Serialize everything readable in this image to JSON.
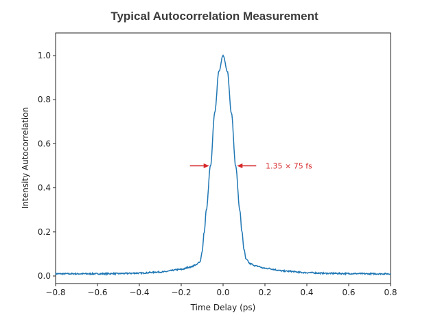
{
  "chart_data": {
    "type": "line",
    "title": "Typical Autocorrelation Measurement",
    "xlabel": "Time Delay (ps)",
    "ylabel": "Intensity Autocorrelation",
    "xlim": [
      -0.8,
      0.8
    ],
    "ylim": [
      -0.03,
      1.1
    ],
    "xticks": [
      "−0.8",
      "−0.6",
      "−0.4",
      "−0.2",
      "0.0",
      "0.2",
      "0.4",
      "0.6",
      "0.8"
    ],
    "xtick_values": [
      -0.8,
      -0.6,
      -0.4,
      -0.2,
      0.0,
      0.2,
      0.4,
      0.6,
      0.8
    ],
    "yticks": [
      "0.0",
      "0.2",
      "0.4",
      "0.6",
      "0.8",
      "1.0"
    ],
    "ytick_values": [
      0,
      0.2,
      0.4,
      0.6,
      0.8,
      1.0
    ],
    "grid": false,
    "series": [
      {
        "color": "#1f77b4",
        "x": [
          -0.8,
          -0.7,
          -0.6,
          -0.5,
          -0.4,
          -0.3,
          -0.2,
          -0.16,
          -0.13,
          -0.11,
          -0.1,
          -0.09,
          -0.08,
          -0.06,
          -0.04,
          -0.02,
          0,
          0.02,
          0.04,
          0.06,
          0.08,
          0.09,
          0.1,
          0.11,
          0.13,
          0.16,
          0.2,
          0.3,
          0.4,
          0.5,
          0.6,
          0.7,
          0.8
        ],
        "y": [
          0.01,
          0.01,
          0.01,
          0.011,
          0.013,
          0.018,
          0.03,
          0.04,
          0.05,
          0.065,
          0.11,
          0.2,
          0.3,
          0.5,
          0.74,
          0.93,
          1.0,
          0.93,
          0.74,
          0.5,
          0.3,
          0.2,
          0.12,
          0.075,
          0.055,
          0.045,
          0.035,
          0.022,
          0.015,
          0.012,
          0.011,
          0.01,
          0.01
        ]
      }
    ],
    "annotation": {
      "text": "1.35 × 75 fs",
      "y": 0.5,
      "x_left": -0.06,
      "x_right": 0.06,
      "color": "#d62728"
    }
  }
}
